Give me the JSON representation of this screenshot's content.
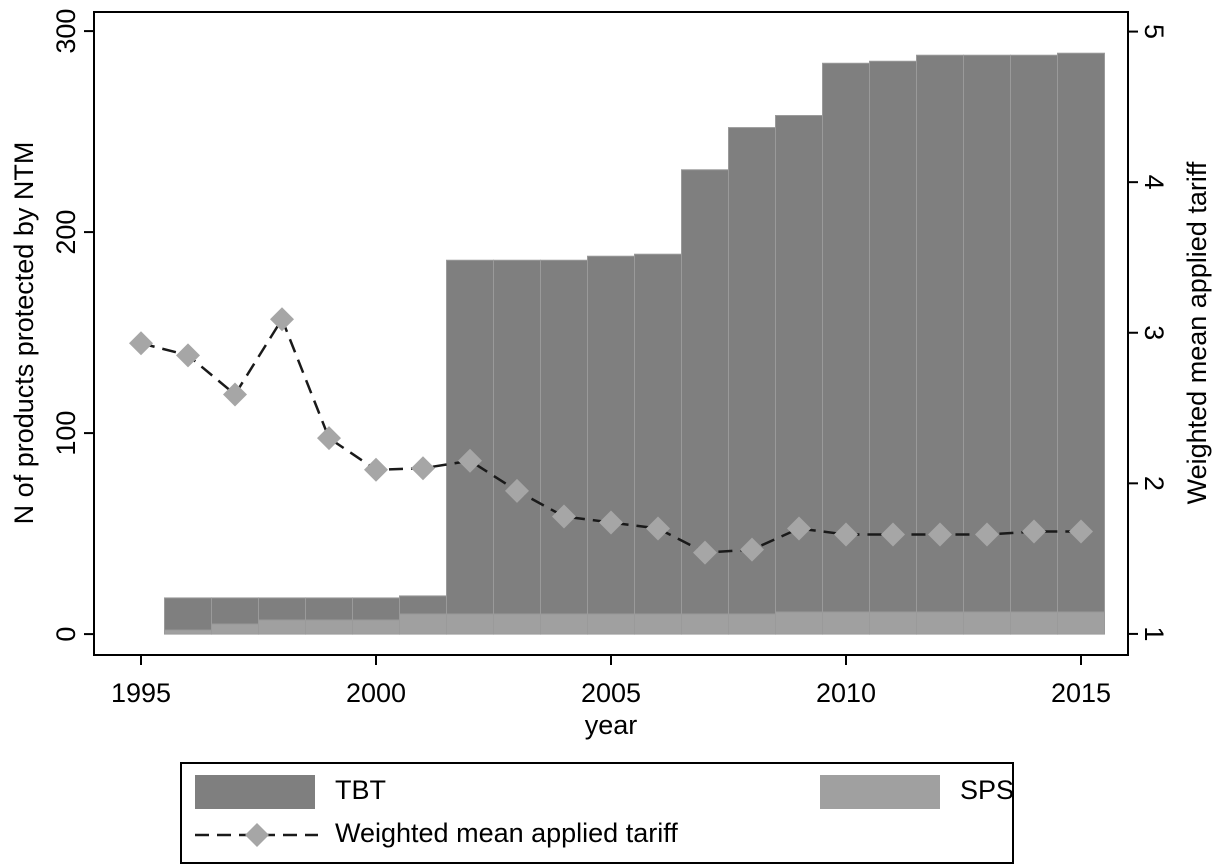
{
  "chart_data": {
    "type": "bar",
    "x": [
      1995,
      1996,
      1997,
      1998,
      1999,
      2000,
      2001,
      2002,
      2003,
      2004,
      2005,
      2006,
      2007,
      2008,
      2009,
      2010,
      2011,
      2012,
      2013,
      2014,
      2015
    ],
    "xlim": [
      1994,
      2016
    ],
    "xticks": [
      1995,
      2000,
      2005,
      2010,
      2015
    ],
    "xlabel": "year",
    "ylim": [
      -10.4,
      309.5
    ],
    "yticks": [
      0,
      100,
      200,
      300
    ],
    "ylabel": "N of products protected by NTM",
    "y2lim": [
      0.86,
      5.13
    ],
    "y2ticks": [
      1,
      2,
      3,
      4,
      5
    ],
    "y2label": "Weighted mean applied tariff",
    "stacked": true,
    "series": [
      {
        "name": "SPS",
        "type": "bar",
        "color": "#a0a0a0",
        "values": [
          null,
          2,
          5,
          7,
          7,
          7,
          10,
          10,
          10,
          10,
          10,
          10,
          10,
          10,
          11,
          11,
          11,
          11,
          11,
          11,
          11
        ]
      },
      {
        "name": "TBT",
        "type": "bar",
        "color": "#7f7f7f",
        "values": [
          null,
          16,
          13,
          11,
          11,
          11,
          9,
          176,
          176,
          176,
          178,
          179,
          221,
          242,
          247,
          273,
          274,
          277,
          277,
          277,
          278
        ]
      },
      {
        "name": "Weighted mean applied tariff",
        "type": "line",
        "axis": "y2",
        "color": "#a6a6a6",
        "values": [
          2.93,
          2.85,
          2.59,
          3.09,
          2.3,
          2.09,
          2.1,
          2.15,
          1.95,
          1.78,
          1.74,
          1.7,
          1.54,
          1.56,
          1.7,
          1.66,
          1.66,
          1.66,
          1.66,
          1.68,
          1.68
        ]
      }
    ]
  }
}
